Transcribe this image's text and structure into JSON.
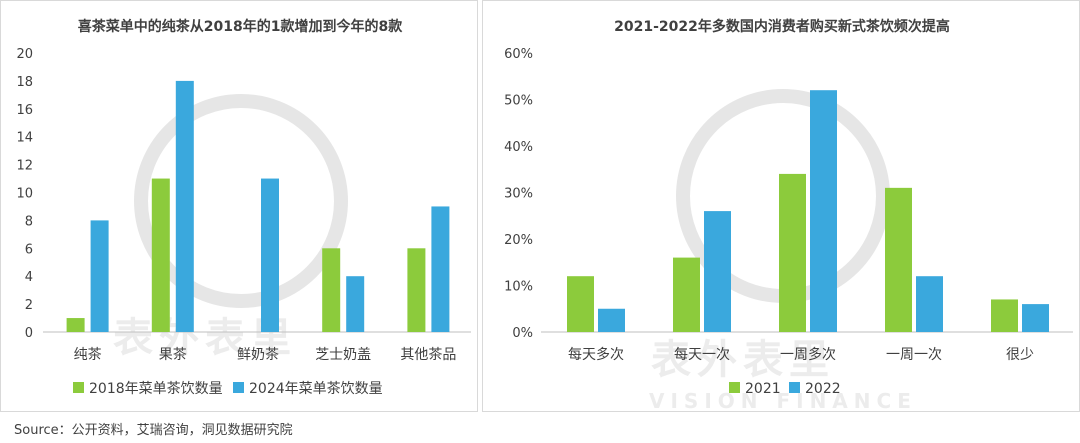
{
  "colors": {
    "green": "#8ccb3c",
    "blue": "#3aa8dd",
    "axis": "#bfbfbf"
  },
  "chart_data": [
    {
      "type": "bar",
      "title": "喜茶菜单中的纯茶从2018年的1款增加到今年的8款",
      "categories": [
        "纯茶",
        "果茶",
        "鲜奶茶",
        "芝士奶盖",
        "其他茶品"
      ],
      "series": [
        {
          "name": "2018年菜单茶饮数量",
          "values": [
            1,
            11,
            0,
            6,
            6
          ]
        },
        {
          "name": "2024年菜单茶饮数量",
          "values": [
            8,
            18,
            11,
            4,
            9
          ]
        }
      ],
      "ylim": [
        0,
        20
      ],
      "yticks": [
        "0",
        "2",
        "4",
        "6",
        "8",
        "10",
        "12",
        "14",
        "16",
        "18",
        "20"
      ],
      "grid": false,
      "legend": "bottom"
    },
    {
      "type": "bar",
      "title": "2021-2022年多数国内消费者购买新式茶饮频次提高",
      "categories": [
        "每天多次",
        "每天一次",
        "一周多次",
        "一周一次",
        "很少"
      ],
      "series": [
        {
          "name": "2021",
          "values": [
            12,
            16,
            34,
            31,
            7
          ]
        },
        {
          "name": "2022",
          "values": [
            5,
            26,
            52,
            12,
            6
          ]
        }
      ],
      "ylim": [
        0,
        60
      ],
      "yticks": [
        "0%",
        "10%",
        "20%",
        "30%",
        "40%",
        "50%",
        "60%"
      ],
      "grid": false,
      "legend": "bottom"
    }
  ],
  "watermark": {
    "brand": "表外表里",
    "sub": "VISION FINANCE"
  },
  "source": "Source：公开资料，艾瑞咨询，洞见数据研究院"
}
